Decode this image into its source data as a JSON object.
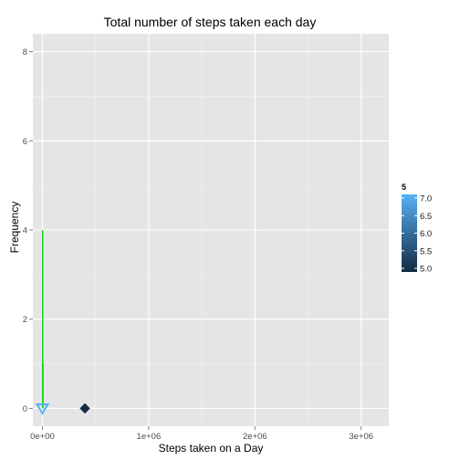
{
  "chart_data": {
    "type": "line",
    "title": "Total number of steps taken each day",
    "xlabel": "Steps taken on a Day",
    "ylabel": "Frequency",
    "xlim": [
      -90000,
      3260000
    ],
    "ylim": [
      -0.4,
      8.4
    ],
    "x_ticks": [
      {
        "value": 0,
        "label": "0e+00"
      },
      {
        "value": 1000000,
        "label": "1e+06"
      },
      {
        "value": 2000000,
        "label": "2e+06"
      },
      {
        "value": 3000000,
        "label": "3e+06"
      }
    ],
    "y_ticks": [
      {
        "value": 0,
        "label": "0"
      },
      {
        "value": 2,
        "label": "2"
      },
      {
        "value": 4,
        "label": "4"
      },
      {
        "value": 6,
        "label": "6"
      },
      {
        "value": 8,
        "label": "8"
      }
    ],
    "grid": true,
    "series": [
      {
        "kind": "line",
        "color": "#00cc00",
        "points": [
          [
            2500,
            0
          ],
          [
            2500,
            4.0
          ]
        ]
      },
      {
        "kind": "line",
        "color": "#00cc00",
        "points": [
          [
            5500,
            0
          ],
          [
            5500,
            1.0
          ]
        ]
      }
    ],
    "markers": [
      {
        "x": 0,
        "y": 0,
        "shape": "triangle-down",
        "color": "#56b1f7",
        "value": 7.0
      },
      {
        "x": 400000,
        "y": 0,
        "shape": "diamond",
        "color": "#132b43",
        "value": 5.0
      }
    ],
    "legend": {
      "title": "5",
      "position": "right",
      "type": "colorbar",
      "range": [
        5.0,
        7.0
      ],
      "low_color": "#132b43",
      "high_color": "#56b1f7",
      "labels": [
        {
          "value": 7.0,
          "label": "7.0"
        },
        {
          "value": 6.5,
          "label": "6.5"
        },
        {
          "value": 6.0,
          "label": "6.0"
        },
        {
          "value": 5.5,
          "label": "5.5"
        },
        {
          "value": 5.0,
          "label": "5.0"
        }
      ]
    },
    "colors": {
      "panel_background": "#e5e5e5",
      "grid_major": "#ffffff",
      "grid_minor": "#f2f2f2"
    }
  }
}
